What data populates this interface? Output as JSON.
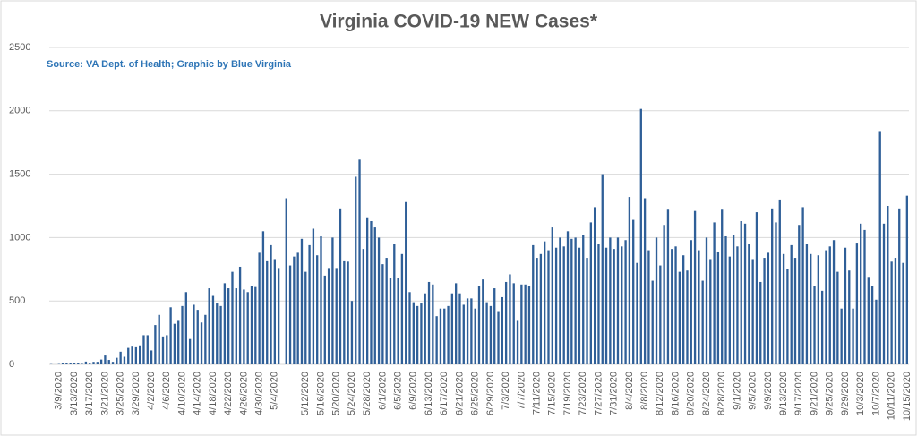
{
  "chart_data": {
    "type": "bar",
    "title": "Virginia COVID-19 NEW Cases*",
    "subtitle": "Source: VA Dept. of Health; Graphic by Blue Virginia",
    "color": "#2f5f98",
    "grid": true,
    "ylim": [
      0,
      2500
    ],
    "yticks": [
      0,
      500,
      1000,
      1500,
      2000,
      2500
    ],
    "categories": [
      null,
      null,
      "3/9/2020",
      null,
      null,
      null,
      "3/13/2020",
      null,
      null,
      null,
      "3/17/2020",
      null,
      null,
      null,
      "3/21/2020",
      null,
      null,
      null,
      "3/25/2020",
      null,
      null,
      null,
      "3/29/2020",
      null,
      null,
      null,
      "4/2/2020",
      null,
      null,
      null,
      "4/6/2020",
      null,
      null,
      null,
      "4/10/2020",
      null,
      null,
      null,
      "4/14/2020",
      null,
      null,
      null,
      "4/18/2020",
      null,
      null,
      null,
      "4/22/2020",
      null,
      null,
      null,
      "4/26/2020",
      null,
      null,
      null,
      "4/30/2020",
      null,
      null,
      null,
      "5/4/2020",
      null,
      null,
      null,
      null,
      null,
      null,
      null,
      "5/12/2020",
      null,
      null,
      null,
      "5/16/2020",
      null,
      null,
      null,
      "5/20/2020",
      null,
      null,
      null,
      "5/24/2020",
      null,
      null,
      null,
      "5/28/2020",
      null,
      null,
      null,
      "6/1/2020",
      null,
      null,
      null,
      "6/5/2020",
      null,
      null,
      null,
      "6/9/2020",
      null,
      null,
      null,
      "6/13/2020",
      null,
      null,
      null,
      "6/17/2020",
      null,
      null,
      null,
      "6/21/2020",
      null,
      null,
      null,
      "6/25/2020",
      null,
      null,
      null,
      "6/29/2020",
      null,
      null,
      null,
      "7/3/2020",
      null,
      null,
      null,
      "7/7/2020",
      null,
      null,
      null,
      "7/11/2020",
      null,
      null,
      null,
      "7/15/2020",
      null,
      null,
      null,
      "7/19/2020",
      null,
      null,
      null,
      "7/23/2020",
      null,
      null,
      null,
      "7/27/2020",
      null,
      null,
      null,
      "7/31/2020",
      null,
      null,
      null,
      "8/4/2020",
      null,
      null,
      null,
      "8/8/2020",
      null,
      null,
      null,
      "8/12/2020",
      null,
      null,
      null,
      "8/16/2020",
      null,
      null,
      null,
      "8/20/2020",
      null,
      null,
      null,
      "8/24/2020",
      null,
      null,
      null,
      "8/28/2020",
      null,
      null,
      null,
      "9/1/2020",
      null,
      null,
      null,
      "9/5/2020",
      null,
      null,
      null,
      "9/9/2020",
      null,
      null,
      null,
      "9/13/2020",
      null,
      null,
      null,
      "9/17/2020",
      null,
      null,
      null,
      "9/21/2020",
      null,
      null,
      null,
      "9/25/2020",
      null,
      null,
      null,
      "9/29/2020",
      null,
      null,
      null,
      "10/3/2020",
      null,
      null,
      null,
      "10/7/2020",
      null,
      null,
      null,
      "10/11/2020",
      null,
      null,
      null,
      "10/15/2020"
    ],
    "values": [
      2,
      0,
      3,
      7,
      8,
      9,
      11,
      11,
      4,
      22,
      6,
      20,
      20,
      38,
      70,
      35,
      20,
      52,
      100,
      60,
      130,
      140,
      135,
      150,
      230,
      230,
      110,
      310,
      390,
      220,
      230,
      450,
      320,
      350,
      460,
      570,
      200,
      470,
      430,
      330,
      390,
      600,
      540,
      480,
      460,
      640,
      600,
      730,
      600,
      770,
      590,
      570,
      620,
      610,
      880,
      1050,
      820,
      940,
      830,
      760,
      0,
      1310,
      780,
      850,
      880,
      990,
      730,
      940,
      1070,
      860,
      1010,
      700,
      760,
      1000,
      760,
      1230,
      820,
      810,
      500,
      1480,
      1615,
      910,
      1160,
      1130,
      1080,
      1000,
      790,
      840,
      680,
      950,
      680,
      870,
      1280,
      570,
      490,
      460,
      480,
      560,
      650,
      630,
      380,
      440,
      440,
      460,
      560,
      640,
      560,
      470,
      520,
      520,
      440,
      620,
      670,
      490,
      460,
      600,
      420,
      530,
      650,
      710,
      640,
      350,
      630,
      630,
      620,
      940,
      840,
      870,
      970,
      900,
      1080,
      920,
      1000,
      930,
      1050,
      990,
      1000,
      920,
      1020,
      840,
      1120,
      1240,
      950,
      1500,
      920,
      1000,
      910,
      1000,
      930,
      980,
      1320,
      1140,
      800,
      2015,
      1310,
      900,
      660,
      1000,
      780,
      1100,
      1220,
      910,
      930,
      730,
      860,
      740,
      980,
      1210,
      900,
      660,
      1000,
      830,
      1120,
      890,
      1220,
      1010,
      850,
      1020,
      930,
      1130,
      1110,
      950,
      830,
      1200,
      650,
      840,
      880,
      1230,
      1120,
      1300,
      870,
      750,
      940,
      840,
      1100,
      1240,
      950,
      870,
      620,
      860,
      580,
      900,
      930,
      980,
      730,
      440,
      920,
      740,
      440,
      960,
      1110,
      1060,
      690,
      620,
      510,
      1840,
      1110,
      1250,
      810,
      840,
      1230,
      800,
      1330
    ]
  }
}
